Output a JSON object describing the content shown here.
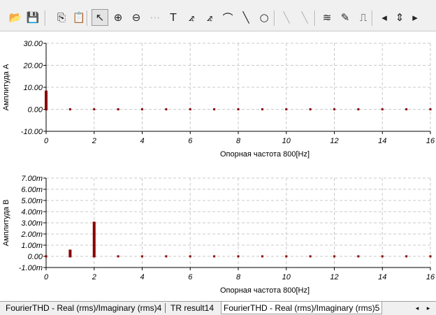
{
  "toolbar": {
    "buttons": [
      {
        "name": "open-folder-icon",
        "glyph": "📂",
        "state": "normal"
      },
      {
        "name": "save-icon",
        "glyph": "💾",
        "state": "normal"
      },
      {
        "name": "copy-icon",
        "glyph": "⎘",
        "state": "normal"
      },
      {
        "name": "paste-icon",
        "glyph": "📋",
        "state": "normal"
      },
      {
        "name": "pointer-icon",
        "glyph": "↖",
        "state": "pressed"
      },
      {
        "name": "zoom-in-icon",
        "glyph": "⊕",
        "state": "normal"
      },
      {
        "name": "zoom-100-icon",
        "glyph": "⊖",
        "state": "normal"
      },
      {
        "name": "grid-icon",
        "glyph": "⋯",
        "state": "disabled"
      },
      {
        "name": "text-icon",
        "glyph": "T",
        "state": "normal"
      },
      {
        "name": "marker-icon",
        "glyph": "⦨",
        "state": "normal"
      },
      {
        "name": "marker-2-icon",
        "glyph": "⦨",
        "state": "normal"
      },
      {
        "name": "curve-fit-icon",
        "glyph": "⌒",
        "state": "normal"
      },
      {
        "name": "line-icon",
        "glyph": "╲",
        "state": "normal"
      },
      {
        "name": "ellipse-icon",
        "glyph": "○",
        "state": "normal"
      },
      {
        "name": "line-disabled-icon",
        "glyph": "╲",
        "state": "disabled"
      },
      {
        "name": "line-disabled-2-icon",
        "glyph": "╲",
        "state": "disabled"
      },
      {
        "name": "add-series-icon",
        "glyph": "≋",
        "state": "normal"
      },
      {
        "name": "add-point-icon",
        "glyph": "✎",
        "state": "normal"
      },
      {
        "name": "step-icon",
        "glyph": "⎍",
        "state": "normal"
      },
      {
        "name": "arrow-left-icon",
        "glyph": "◂",
        "state": "normal"
      },
      {
        "name": "spin-up-down-icon",
        "glyph": "⇕",
        "state": "normal"
      },
      {
        "name": "arrow-right-icon",
        "glyph": "▸",
        "state": "normal"
      }
    ]
  },
  "colors": {
    "marker": "#8b0000",
    "grid": "#c8c8c8"
  },
  "chart_data": [
    {
      "type": "bar",
      "ylabel": "Амплитуда А",
      "xlabel": "Опорная частота 800[Hz]",
      "x": [
        0,
        1,
        2,
        3,
        4,
        5,
        6,
        7,
        8,
        9,
        10,
        11,
        12,
        13,
        14,
        15,
        16
      ],
      "values": [
        8.5,
        0,
        0,
        0,
        0,
        0,
        0,
        0,
        0,
        0,
        0,
        0,
        0,
        0,
        0,
        0,
        0
      ],
      "ylim": [
        -10,
        30
      ],
      "xlim": [
        0,
        16
      ],
      "yticks": [
        "30.00",
        "20.00",
        "10.00",
        "0.00",
        "-10.00"
      ],
      "xticks": [
        "0",
        "2",
        "4",
        "6",
        "8",
        "10",
        "12",
        "14",
        "16"
      ],
      "grid": true
    },
    {
      "type": "bar",
      "ylabel": "Амплитуда В",
      "xlabel": "Опорная частота 800[Hz]",
      "x": [
        0,
        1,
        2,
        3,
        4,
        5,
        6,
        7,
        8,
        9,
        10,
        11,
        12,
        13,
        14,
        15,
        16
      ],
      "values": [
        0,
        0.0006,
        0.0031,
        0.0001,
        -5e-05,
        5e-05,
        2e-05,
        0,
        0,
        0,
        0,
        0,
        0,
        0,
        0,
        0,
        0
      ],
      "ylim": [
        -0.001,
        0.007
      ],
      "xlim": [
        0,
        16
      ],
      "yticks": [
        "7.00m",
        "6.00m",
        "5.00m",
        "4.00m",
        "3.00m",
        "2.00m",
        "1.00m",
        "0.00",
        "-1.00m"
      ],
      "xticks": [
        "0",
        "2",
        "4",
        "6",
        "8",
        "10",
        "12",
        "14",
        "16"
      ],
      "grid": true
    }
  ],
  "tabs": {
    "items": [
      "FourierTHD - Real (rms)/Imaginary (rms)4",
      "TR result14",
      "FourierTHD - Real (rms)/Imaginary (rms)5"
    ],
    "active_index": 2
  },
  "scroll": {
    "left": "◂",
    "right": "▸"
  }
}
